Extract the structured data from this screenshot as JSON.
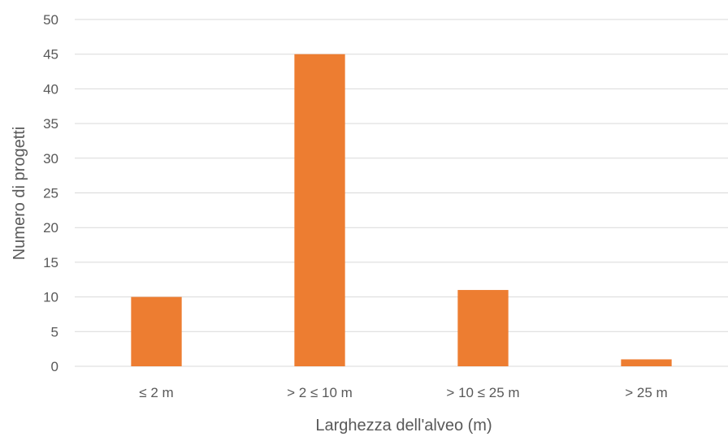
{
  "chart_data": {
    "type": "bar",
    "title": "",
    "xlabel": "Larghezza dell'alveo (m)",
    "ylabel": "Numero di progetti",
    "categories": [
      "≤ 2 m",
      "> 2 ≤ 10 m",
      "> 10 ≤ 25 m",
      "> 25 m"
    ],
    "values": [
      10,
      45,
      11,
      1
    ],
    "ylim": [
      0,
      50
    ],
    "yticks": [
      0,
      5,
      10,
      15,
      20,
      25,
      30,
      35,
      40,
      45,
      50
    ],
    "grid": true,
    "legend": "none",
    "bar_color": "#ED7D31",
    "grid_color": "#D9D9D9"
  }
}
